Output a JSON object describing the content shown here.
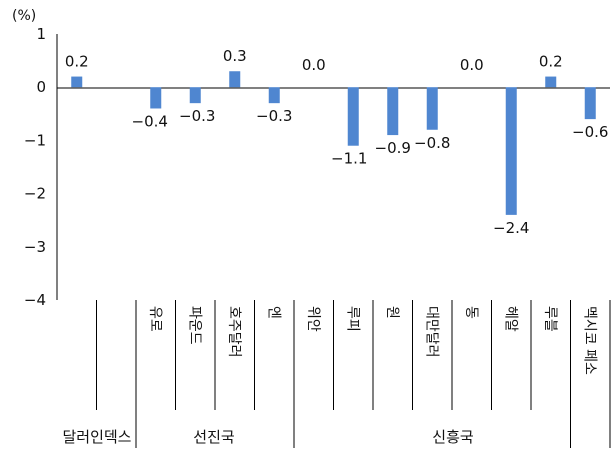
{
  "chart_data": {
    "type": "bar",
    "unit": "(%)",
    "ylim": [
      -4,
      1
    ],
    "yticks": [
      "1",
      "0",
      "−1",
      "−2",
      "−3",
      "−4"
    ],
    "bar_color": "#4f86d0",
    "categories": [
      "",
      "",
      "유로",
      "파운드",
      "호주달러",
      "엔",
      "위안",
      "루피",
      "원",
      "대만달러",
      "동",
      "헤알",
      "루블",
      "멕시코 페소"
    ],
    "values": [
      0.2,
      null,
      -0.4,
      -0.3,
      0.3,
      -0.3,
      0.0,
      -1.1,
      -0.9,
      -0.8,
      0.0,
      -2.4,
      0.2,
      -0.6
    ],
    "data_labels": [
      "0.2",
      "",
      "−0.4",
      "−0.3",
      "0.3",
      "−0.3",
      "0.0",
      "−1.1",
      "−0.9",
      "−0.8",
      "0.0",
      "−2.4",
      "0.2",
      "−0.6"
    ],
    "groups": [
      {
        "label": "달러인덱스"
      },
      {
        "label": "선진국"
      },
      {
        "label": "신흥국"
      }
    ]
  }
}
